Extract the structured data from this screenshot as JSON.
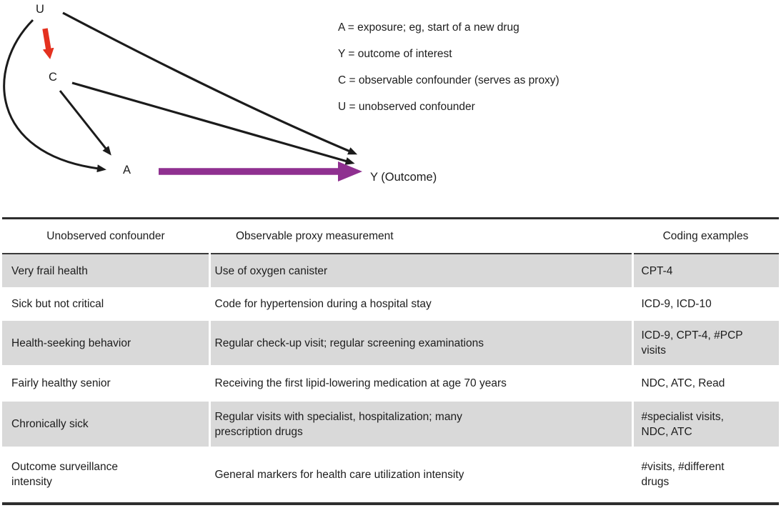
{
  "diagram": {
    "nodes": {
      "u": "U",
      "c": "C",
      "a": "A",
      "y": "Y (Outcome)"
    },
    "legend": [
      "A = exposure; eg, start of a new drug",
      "Y = outcome of interest",
      "C = observable confounder (serves as proxy)",
      "U = unobserved confounder"
    ],
    "colors": {
      "arrow_black": "#1b1b1b",
      "arrow_red": "#e4311f",
      "arrow_purple": "#8f3090"
    }
  },
  "table": {
    "columns": [
      "Unobserved confounder",
      "Observable proxy measurement",
      "Coding examples"
    ],
    "stripe_color": "#d9d9d9",
    "rows": [
      {
        "confounder": "Very frail health",
        "proxy": "Use of oxygen canister",
        "coding": "CPT-4"
      },
      {
        "confounder": "Sick but not critical",
        "proxy": "Code for hypertension during a hospital stay",
        "coding": "ICD-9, ICD-10"
      },
      {
        "confounder": "Health-seeking behavior",
        "proxy": "Regular check-up visit; regular screening examinations",
        "coding": "ICD-9, CPT-4, #PCP\nvisits"
      },
      {
        "confounder": "Fairly healthy senior",
        "proxy": "Receiving the first lipid-lowering medication at age 70 years",
        "coding": "NDC, ATC, Read"
      },
      {
        "confounder": "Chronically sick",
        "proxy": "Regular visits with specialist, hospitalization; many\nprescription drugs",
        "coding": "#specialist visits,\nNDC, ATC"
      },
      {
        "confounder": "Outcome surveillance\nintensity",
        "proxy": "General markers for health care utilization intensity",
        "coding": "#visits, #different\ndrugs"
      }
    ]
  }
}
